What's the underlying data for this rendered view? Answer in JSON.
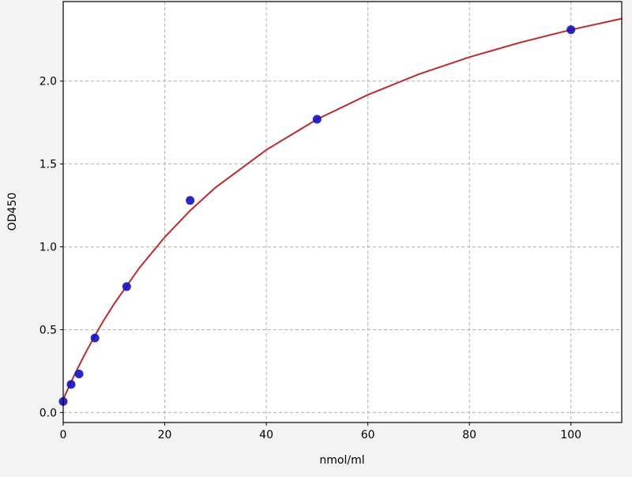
{
  "chart_data": {
    "type": "scatter",
    "title": "",
    "xlabel": "nmol/ml",
    "ylabel": "OD450",
    "xlim": [
      0,
      110
    ],
    "ylim": [
      -0.06,
      2.48
    ],
    "xticks": [
      0,
      20,
      40,
      60,
      80,
      100
    ],
    "yticks": [
      0.0,
      0.5,
      1.0,
      1.5,
      2.0
    ],
    "xtick_labels": [
      "0",
      "20",
      "40",
      "60",
      "80",
      "100"
    ],
    "ytick_labels": [
      "0.0",
      "0.5",
      "1.0",
      "1.5",
      "2.0"
    ],
    "grid": true,
    "grid_style": "dashed",
    "points": {
      "x": [
        0,
        1.56,
        3.125,
        6.25,
        12.5,
        25,
        50,
        100
      ],
      "y": [
        0.067,
        0.17,
        0.233,
        0.45,
        0.76,
        1.28,
        1.77,
        2.31
      ],
      "color": "#1010c8"
    },
    "fit_curve": {
      "x": [
        0,
        2,
        4,
        6,
        8,
        10,
        15,
        20,
        25,
        30,
        40,
        50,
        60,
        70,
        80,
        90,
        100,
        110
      ],
      "y": [
        0.08,
        0.214,
        0.337,
        0.451,
        0.557,
        0.655,
        0.873,
        1.058,
        1.219,
        1.358,
        1.585,
        1.77,
        1.917,
        2.041,
        2.145,
        2.233,
        2.31,
        2.377
      ],
      "color": "#c0282a"
    },
    "colors": {
      "figure_background": "#f3f3f3",
      "plot_background": "#ffffff",
      "grid": "#b0b0b0"
    }
  }
}
